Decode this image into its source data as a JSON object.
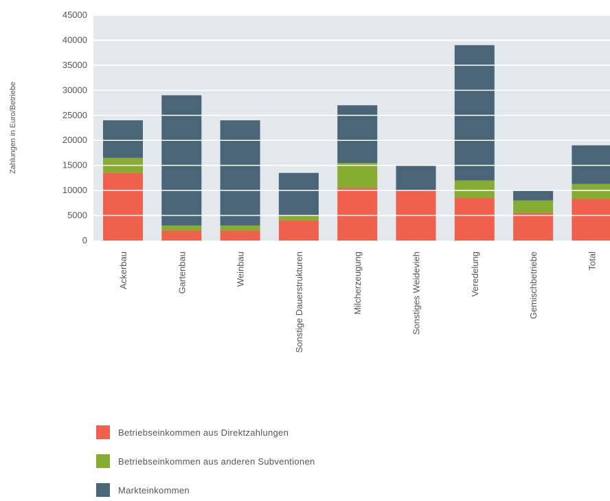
{
  "chart_data": {
    "type": "bar",
    "stacked": true,
    "ylabel": "Zahlungen in Euro/Betriebe",
    "ylim": [
      0,
      45000
    ],
    "yticks": [
      0,
      5000,
      10000,
      15000,
      20000,
      25000,
      30000,
      35000,
      40000,
      45000
    ],
    "grid": true,
    "legend_position": "bottom",
    "categories": [
      "Ackerbau",
      "Gartenbau",
      "Weinbau",
      "Sonstige Dauerstrukturen",
      "Milcherzeugung",
      "Sonstiges Weidevieh",
      "Veredelung",
      "Gemischbetriebe",
      "Total"
    ],
    "series": [
      {
        "name": "Betriebseinkommen aus Direktzahlungen",
        "color": "#f0614d",
        "values": [
          13500,
          2000,
          2000,
          4000,
          10500,
          10000,
          8500,
          5500,
          8300
        ]
      },
      {
        "name": "Betriebseinkommen aus anderen Subventionen",
        "color": "#86ad32",
        "values": [
          3000,
          1000,
          1000,
          1000,
          5000,
          0,
          3500,
          2500,
          3000
        ]
      },
      {
        "name": "Markteinkommen",
        "color": "#4a6577",
        "values": [
          7500,
          26000,
          21000,
          8500,
          11500,
          5000,
          27000,
          2000,
          7700
        ]
      }
    ]
  },
  "colors": {
    "plot_background": "#e2e8eb",
    "gridline": "#ffffff"
  }
}
